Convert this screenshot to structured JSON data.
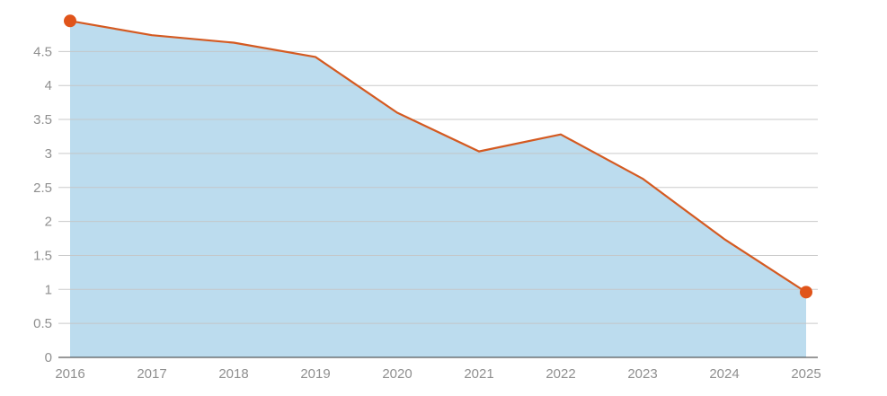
{
  "chart_data": {
    "type": "area",
    "title": "",
    "xlabel": "",
    "ylabel": "",
    "categories": [
      "2016",
      "2017",
      "2018",
      "2019",
      "2020",
      "2021",
      "2022",
      "2023",
      "2024",
      "2025"
    ],
    "series": [
      {
        "values": [
          4.95,
          4.74,
          4.63,
          4.42,
          3.6,
          3.03,
          3.28,
          2.63,
          1.74,
          0.96
        ]
      }
    ],
    "ylim": [
      0,
      5
    ],
    "yticks": [
      "0",
      "0.5",
      "1",
      "1.5",
      "2",
      "2.5",
      "3",
      "3.5",
      "4",
      "4.5"
    ],
    "grid": true,
    "highlight_endpoints": true,
    "colors": {
      "line": "#d45a21",
      "area": "#bcdcee",
      "marker": "#e0541a",
      "grid": "#c4c4c4",
      "axis": "#333333",
      "tick_text": "#8f8f8f"
    }
  }
}
